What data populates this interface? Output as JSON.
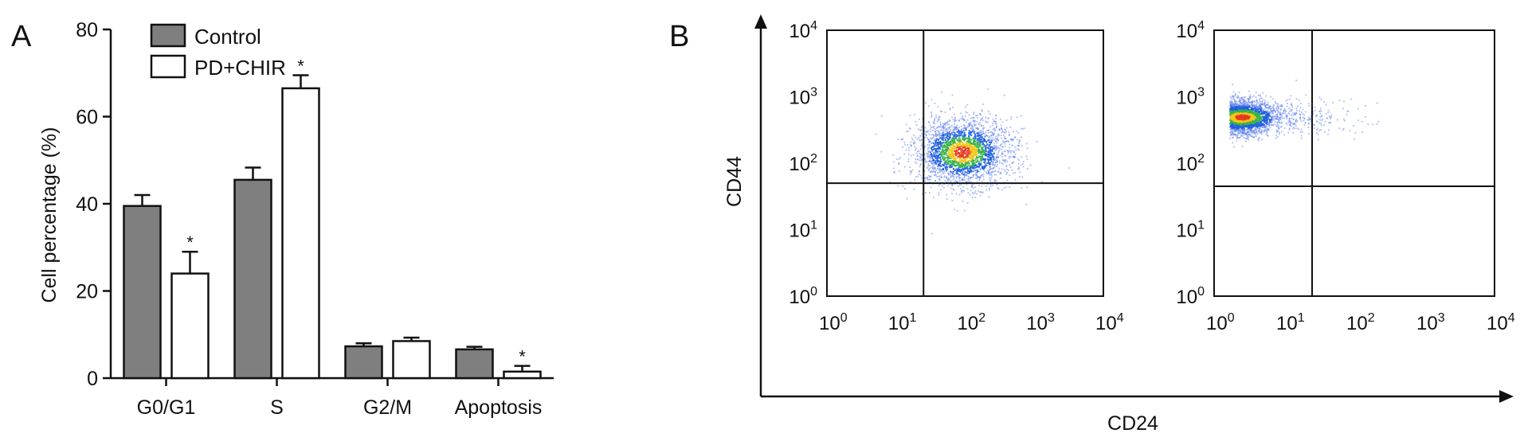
{
  "panels": {
    "a_label": "A",
    "b_label": "B"
  },
  "chart_data": [
    {
      "type": "bar",
      "panel": "A",
      "title": "",
      "xlabel": "",
      "ylabel": "Cell percentage (%)",
      "ylim": [
        0,
        80
      ],
      "yticks": [
        "0",
        "20",
        "40",
        "60",
        "80"
      ],
      "categories": [
        "G0/G1",
        "S",
        "G2/M",
        "Apoptosis"
      ],
      "legend_position": "top-left",
      "significance_mark": "*",
      "series": [
        {
          "name": "Control",
          "color": "#7f7f7f",
          "values": [
            39.5,
            45.5,
            7.3,
            6.6
          ],
          "errors": [
            2.5,
            2.8,
            0.7,
            0.6
          ],
          "significant": [
            false,
            false,
            false,
            false
          ]
        },
        {
          "name": "PD+CHIR",
          "color": "#ffffff",
          "values": [
            24.0,
            66.5,
            8.5,
            1.5
          ],
          "errors": [
            5.0,
            3.0,
            0.8,
            1.3
          ],
          "significant": [
            true,
            true,
            false,
            true
          ]
        }
      ]
    },
    {
      "type": "scatter",
      "panel": "B",
      "subtype": "flow cytometry density plots",
      "xlabel": "CD24",
      "ylabel": "CD44",
      "x_scale": "log",
      "y_scale": "log",
      "xlim": [
        1,
        10000
      ],
      "ylim": [
        1,
        10000
      ],
      "tick_base": "10",
      "tick_exponents": [
        "0",
        "1",
        "2",
        "3",
        "4"
      ],
      "plots": [
        {
          "gate_x": 25,
          "gate_y": 50,
          "population_center": [
            90,
            150
          ]
        },
        {
          "gate_x": 25,
          "gate_y": 45,
          "population_center": [
            2.5,
            500
          ]
        }
      ]
    }
  ]
}
